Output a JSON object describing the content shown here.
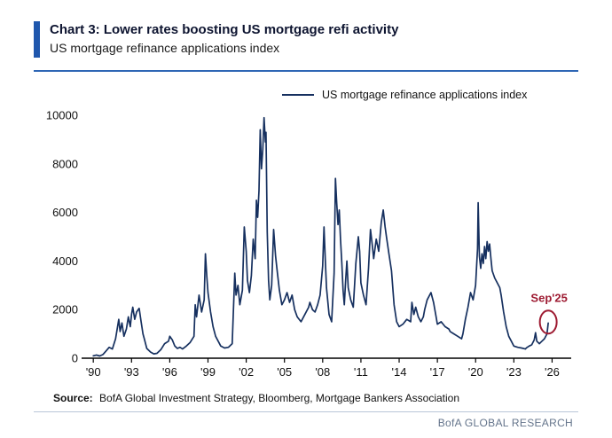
{
  "header": {
    "title": "Chart 3: Lower rates boosting US mortgage refi activity",
    "subtitle": "US mortgage refinance applications index"
  },
  "legend": {
    "label": "US mortgage refinance applications index"
  },
  "source": {
    "prefix": "Source:",
    "text": "BofA Global Investment Strategy, Bloomberg, Mortgage Bankers Association"
  },
  "brand": "BofA GLOBAL RESEARCH",
  "colors": {
    "accent_bar": "#1f57ad",
    "top_rule": "#2e66b5",
    "line": "#16305f",
    "annotation": "#9e1b32",
    "footer_rule": "#b9c6d8",
    "brand_text": "#64748b"
  },
  "chart_data": {
    "type": "line",
    "title": "US mortgage refinance applications index",
    "xlabel": "",
    "ylabel": "",
    "xlim": [
      1989.5,
      2027.5
    ],
    "ylim": [
      0,
      10000
    ],
    "yticks": [
      0,
      2000,
      4000,
      6000,
      8000,
      10000
    ],
    "xtick_values": [
      1990,
      1993,
      1996,
      1999,
      2002,
      2005,
      2008,
      2011,
      2014,
      2017,
      2020,
      2023,
      2026
    ],
    "xticks": [
      "'90",
      "'93",
      "'96",
      "'99",
      "'02",
      "'05",
      "'08",
      "'11",
      "'14",
      "'17",
      "'20",
      "'23",
      "'26"
    ],
    "grid": false,
    "legend_position": "top-center",
    "line_color": "#16305f",
    "annotation": {
      "label": "Sep'25",
      "x": 2025.7,
      "y": 1450,
      "color": "#9e1b32"
    },
    "series": [
      {
        "name": "US mortgage refinance applications index",
        "points": [
          [
            1990.0,
            100
          ],
          [
            1990.25,
            130
          ],
          [
            1990.5,
            90
          ],
          [
            1990.75,
            150
          ],
          [
            1991.0,
            300
          ],
          [
            1991.25,
            450
          ],
          [
            1991.5,
            380
          ],
          [
            1991.75,
            800
          ],
          [
            1992.0,
            1600
          ],
          [
            1992.1,
            1100
          ],
          [
            1992.25,
            1450
          ],
          [
            1992.4,
            900
          ],
          [
            1992.6,
            1200
          ],
          [
            1992.75,
            1700
          ],
          [
            1992.9,
            1300
          ],
          [
            1993.0,
            1800
          ],
          [
            1993.1,
            2100
          ],
          [
            1993.25,
            1600
          ],
          [
            1993.4,
            1900
          ],
          [
            1993.6,
            2050
          ],
          [
            1993.75,
            1500
          ],
          [
            1993.9,
            1000
          ],
          [
            1994.0,
            800
          ],
          [
            1994.2,
            400
          ],
          [
            1994.5,
            250
          ],
          [
            1994.75,
            180
          ],
          [
            1995.0,
            200
          ],
          [
            1995.3,
            350
          ],
          [
            1995.6,
            600
          ],
          [
            1995.9,
            700
          ],
          [
            1996.0,
            900
          ],
          [
            1996.2,
            750
          ],
          [
            1996.4,
            500
          ],
          [
            1996.6,
            400
          ],
          [
            1996.8,
            450
          ],
          [
            1997.0,
            380
          ],
          [
            1997.3,
            500
          ],
          [
            1997.6,
            650
          ],
          [
            1997.9,
            900
          ],
          [
            1998.0,
            2200
          ],
          [
            1998.1,
            1700
          ],
          [
            1998.3,
            2600
          ],
          [
            1998.5,
            1900
          ],
          [
            1998.7,
            2400
          ],
          [
            1998.8,
            4300
          ],
          [
            1998.9,
            3400
          ],
          [
            1999.0,
            2700
          ],
          [
            1999.2,
            1900
          ],
          [
            1999.4,
            1300
          ],
          [
            1999.6,
            900
          ],
          [
            1999.8,
            700
          ],
          [
            2000.0,
            500
          ],
          [
            2000.3,
            420
          ],
          [
            2000.6,
            450
          ],
          [
            2000.9,
            600
          ],
          [
            2001.0,
            2000
          ],
          [
            2001.1,
            3500
          ],
          [
            2001.2,
            2600
          ],
          [
            2001.35,
            3000
          ],
          [
            2001.5,
            2200
          ],
          [
            2001.7,
            2800
          ],
          [
            2001.85,
            5400
          ],
          [
            2002.0,
            4400
          ],
          [
            2002.1,
            3200
          ],
          [
            2002.25,
            2700
          ],
          [
            2002.4,
            3400
          ],
          [
            2002.55,
            4900
          ],
          [
            2002.7,
            4100
          ],
          [
            2002.8,
            6500
          ],
          [
            2002.9,
            5800
          ],
          [
            2003.0,
            6900
          ],
          [
            2003.1,
            9400
          ],
          [
            2003.2,
            7800
          ],
          [
            2003.3,
            8600
          ],
          [
            2003.4,
            9900
          ],
          [
            2003.5,
            8900
          ],
          [
            2003.55,
            9300
          ],
          [
            2003.65,
            5200
          ],
          [
            2003.75,
            3200
          ],
          [
            2003.85,
            2400
          ],
          [
            2004.0,
            3000
          ],
          [
            2004.15,
            5300
          ],
          [
            2004.3,
            4200
          ],
          [
            2004.45,
            3500
          ],
          [
            2004.6,
            2800
          ],
          [
            2004.8,
            2200
          ],
          [
            2005.0,
            2400
          ],
          [
            2005.2,
            2700
          ],
          [
            2005.4,
            2300
          ],
          [
            2005.6,
            2600
          ],
          [
            2005.8,
            2000
          ],
          [
            2006.0,
            1700
          ],
          [
            2006.3,
            1500
          ],
          [
            2006.6,
            1800
          ],
          [
            2006.9,
            2100
          ],
          [
            2007.0,
            2300
          ],
          [
            2007.2,
            2000
          ],
          [
            2007.4,
            1900
          ],
          [
            2007.6,
            2200
          ],
          [
            2007.8,
            2600
          ],
          [
            2008.0,
            3800
          ],
          [
            2008.1,
            5400
          ],
          [
            2008.2,
            4100
          ],
          [
            2008.3,
            2900
          ],
          [
            2008.5,
            1800
          ],
          [
            2008.7,
            1500
          ],
          [
            2008.9,
            3500
          ],
          [
            2009.0,
            7400
          ],
          [
            2009.1,
            6400
          ],
          [
            2009.2,
            5500
          ],
          [
            2009.3,
            6100
          ],
          [
            2009.4,
            4900
          ],
          [
            2009.5,
            3900
          ],
          [
            2009.6,
            2800
          ],
          [
            2009.7,
            2200
          ],
          [
            2009.8,
            3200
          ],
          [
            2009.9,
            4000
          ],
          [
            2010.0,
            2900
          ],
          [
            2010.2,
            2400
          ],
          [
            2010.4,
            2100
          ],
          [
            2010.6,
            3900
          ],
          [
            2010.8,
            5000
          ],
          [
            2010.9,
            4400
          ],
          [
            2011.0,
            3100
          ],
          [
            2011.2,
            2600
          ],
          [
            2011.4,
            2200
          ],
          [
            2011.6,
            3700
          ],
          [
            2011.75,
            5300
          ],
          [
            2011.9,
            4600
          ],
          [
            2012.0,
            4100
          ],
          [
            2012.2,
            4900
          ],
          [
            2012.4,
            4400
          ],
          [
            2012.6,
            5600
          ],
          [
            2012.75,
            6100
          ],
          [
            2012.9,
            5400
          ],
          [
            2013.0,
            5000
          ],
          [
            2013.2,
            4300
          ],
          [
            2013.4,
            3600
          ],
          [
            2013.6,
            2200
          ],
          [
            2013.8,
            1500
          ],
          [
            2014.0,
            1300
          ],
          [
            2014.3,
            1400
          ],
          [
            2014.6,
            1600
          ],
          [
            2014.9,
            1500
          ],
          [
            2015.0,
            2300
          ],
          [
            2015.15,
            1800
          ],
          [
            2015.3,
            2100
          ],
          [
            2015.5,
            1700
          ],
          [
            2015.7,
            1500
          ],
          [
            2015.9,
            1700
          ],
          [
            2016.0,
            2000
          ],
          [
            2016.2,
            2400
          ],
          [
            2016.5,
            2700
          ],
          [
            2016.7,
            2300
          ],
          [
            2016.9,
            1700
          ],
          [
            2017.0,
            1400
          ],
          [
            2017.3,
            1500
          ],
          [
            2017.6,
            1300
          ],
          [
            2017.9,
            1200
          ],
          [
            2018.0,
            1100
          ],
          [
            2018.3,
            1000
          ],
          [
            2018.6,
            900
          ],
          [
            2018.9,
            800
          ],
          [
            2019.0,
            1000
          ],
          [
            2019.2,
            1600
          ],
          [
            2019.4,
            2100
          ],
          [
            2019.6,
            2700
          ],
          [
            2019.8,
            2400
          ],
          [
            2020.0,
            3000
          ],
          [
            2020.15,
            4500
          ],
          [
            2020.2,
            6400
          ],
          [
            2020.3,
            4200
          ],
          [
            2020.4,
            3700
          ],
          [
            2020.5,
            4300
          ],
          [
            2020.6,
            3900
          ],
          [
            2020.7,
            4600
          ],
          [
            2020.8,
            4100
          ],
          [
            2020.9,
            4800
          ],
          [
            2021.0,
            4400
          ],
          [
            2021.1,
            4700
          ],
          [
            2021.2,
            4100
          ],
          [
            2021.3,
            3600
          ],
          [
            2021.5,
            3300
          ],
          [
            2021.7,
            3100
          ],
          [
            2021.9,
            2900
          ],
          [
            2022.0,
            2600
          ],
          [
            2022.2,
            1900
          ],
          [
            2022.4,
            1300
          ],
          [
            2022.6,
            900
          ],
          [
            2022.8,
            700
          ],
          [
            2023.0,
            500
          ],
          [
            2023.3,
            450
          ],
          [
            2023.6,
            420
          ],
          [
            2023.9,
            380
          ],
          [
            2024.0,
            430
          ],
          [
            2024.2,
            500
          ],
          [
            2024.4,
            550
          ],
          [
            2024.6,
            750
          ],
          [
            2024.7,
            1050
          ],
          [
            2024.8,
            700
          ],
          [
            2025.0,
            600
          ],
          [
            2025.2,
            700
          ],
          [
            2025.4,
            800
          ],
          [
            2025.6,
            1000
          ],
          [
            2025.7,
            1450
          ]
        ]
      }
    ]
  }
}
